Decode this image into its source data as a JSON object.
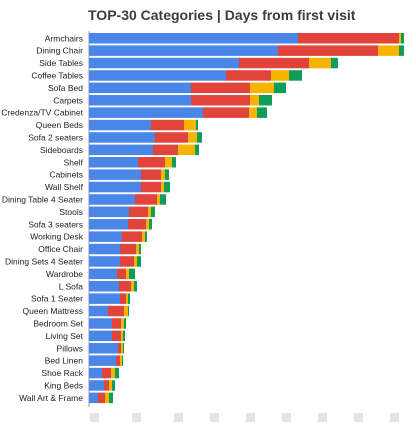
{
  "chart_data": {
    "type": "bar",
    "orientation": "horizontal",
    "stacked": true,
    "title": "TOP-30 Categories | Days from first visit",
    "categories": [
      "Armchairs",
      "Dining Chair",
      "Side Tables",
      "Coffee Tables",
      "Sofa Bed",
      "Carpets",
      "Credenza/TV Cabinet",
      "Queen Beds",
      "Sofa 2 seaters",
      "Sideboards",
      "Shelf",
      "Cabinets",
      "Wall Shelf",
      "Dining Table 4 Seater",
      "Stools",
      "Sofa 3 seaters",
      "Working Desk",
      "Office Chair",
      "Dining Sets 4 Seater",
      "Wardrobe",
      "L Sofa",
      "Sofa 1 Seater",
      "Queen Mattress",
      "Bedroom Set",
      "Living Set",
      "Pillows",
      "Bed Linen",
      "Shoe Rack",
      "King Beds",
      "Wall Art & Frame"
    ],
    "series": [
      {
        "color": "#4a86e8",
        "values": [
          209,
          189,
          150,
          137,
          102,
          102,
          114,
          62,
          66,
          64,
          49,
          52,
          52,
          46,
          40,
          39,
          33,
          31,
          31,
          28,
          30,
          31,
          19,
          23,
          23,
          29,
          27,
          13,
          15,
          9
        ]
      },
      {
        "color": "#e0443a",
        "values": [
          101,
          100,
          70,
          45,
          59,
          59,
          46,
          33,
          33,
          25,
          27,
          20,
          20,
          22,
          19,
          18,
          20,
          16,
          14,
          9,
          12,
          6,
          16,
          9,
          9,
          3,
          4,
          9,
          5,
          7
        ]
      },
      {
        "color": "#f4b400",
        "values": [
          2,
          21,
          22,
          18,
          24,
          9,
          8,
          12,
          9,
          17,
          7,
          4,
          3,
          3,
          3,
          3,
          3,
          3,
          3,
          3,
          3,
          2,
          4,
          3,
          2,
          2,
          2,
          4,
          3,
          4
        ]
      },
      {
        "color": "#0f9d58",
        "values": [
          3,
          5,
          7,
          13,
          12,
          13,
          10,
          2,
          5,
          4,
          4,
          4,
          6,
          6,
          4,
          3,
          2,
          2,
          4,
          6,
          3,
          2,
          1,
          2,
          2,
          1,
          1,
          4,
          3,
          4
        ]
      }
    ],
    "xlim": [
      0,
      320
    ],
    "grid": false,
    "legend": "none"
  }
}
